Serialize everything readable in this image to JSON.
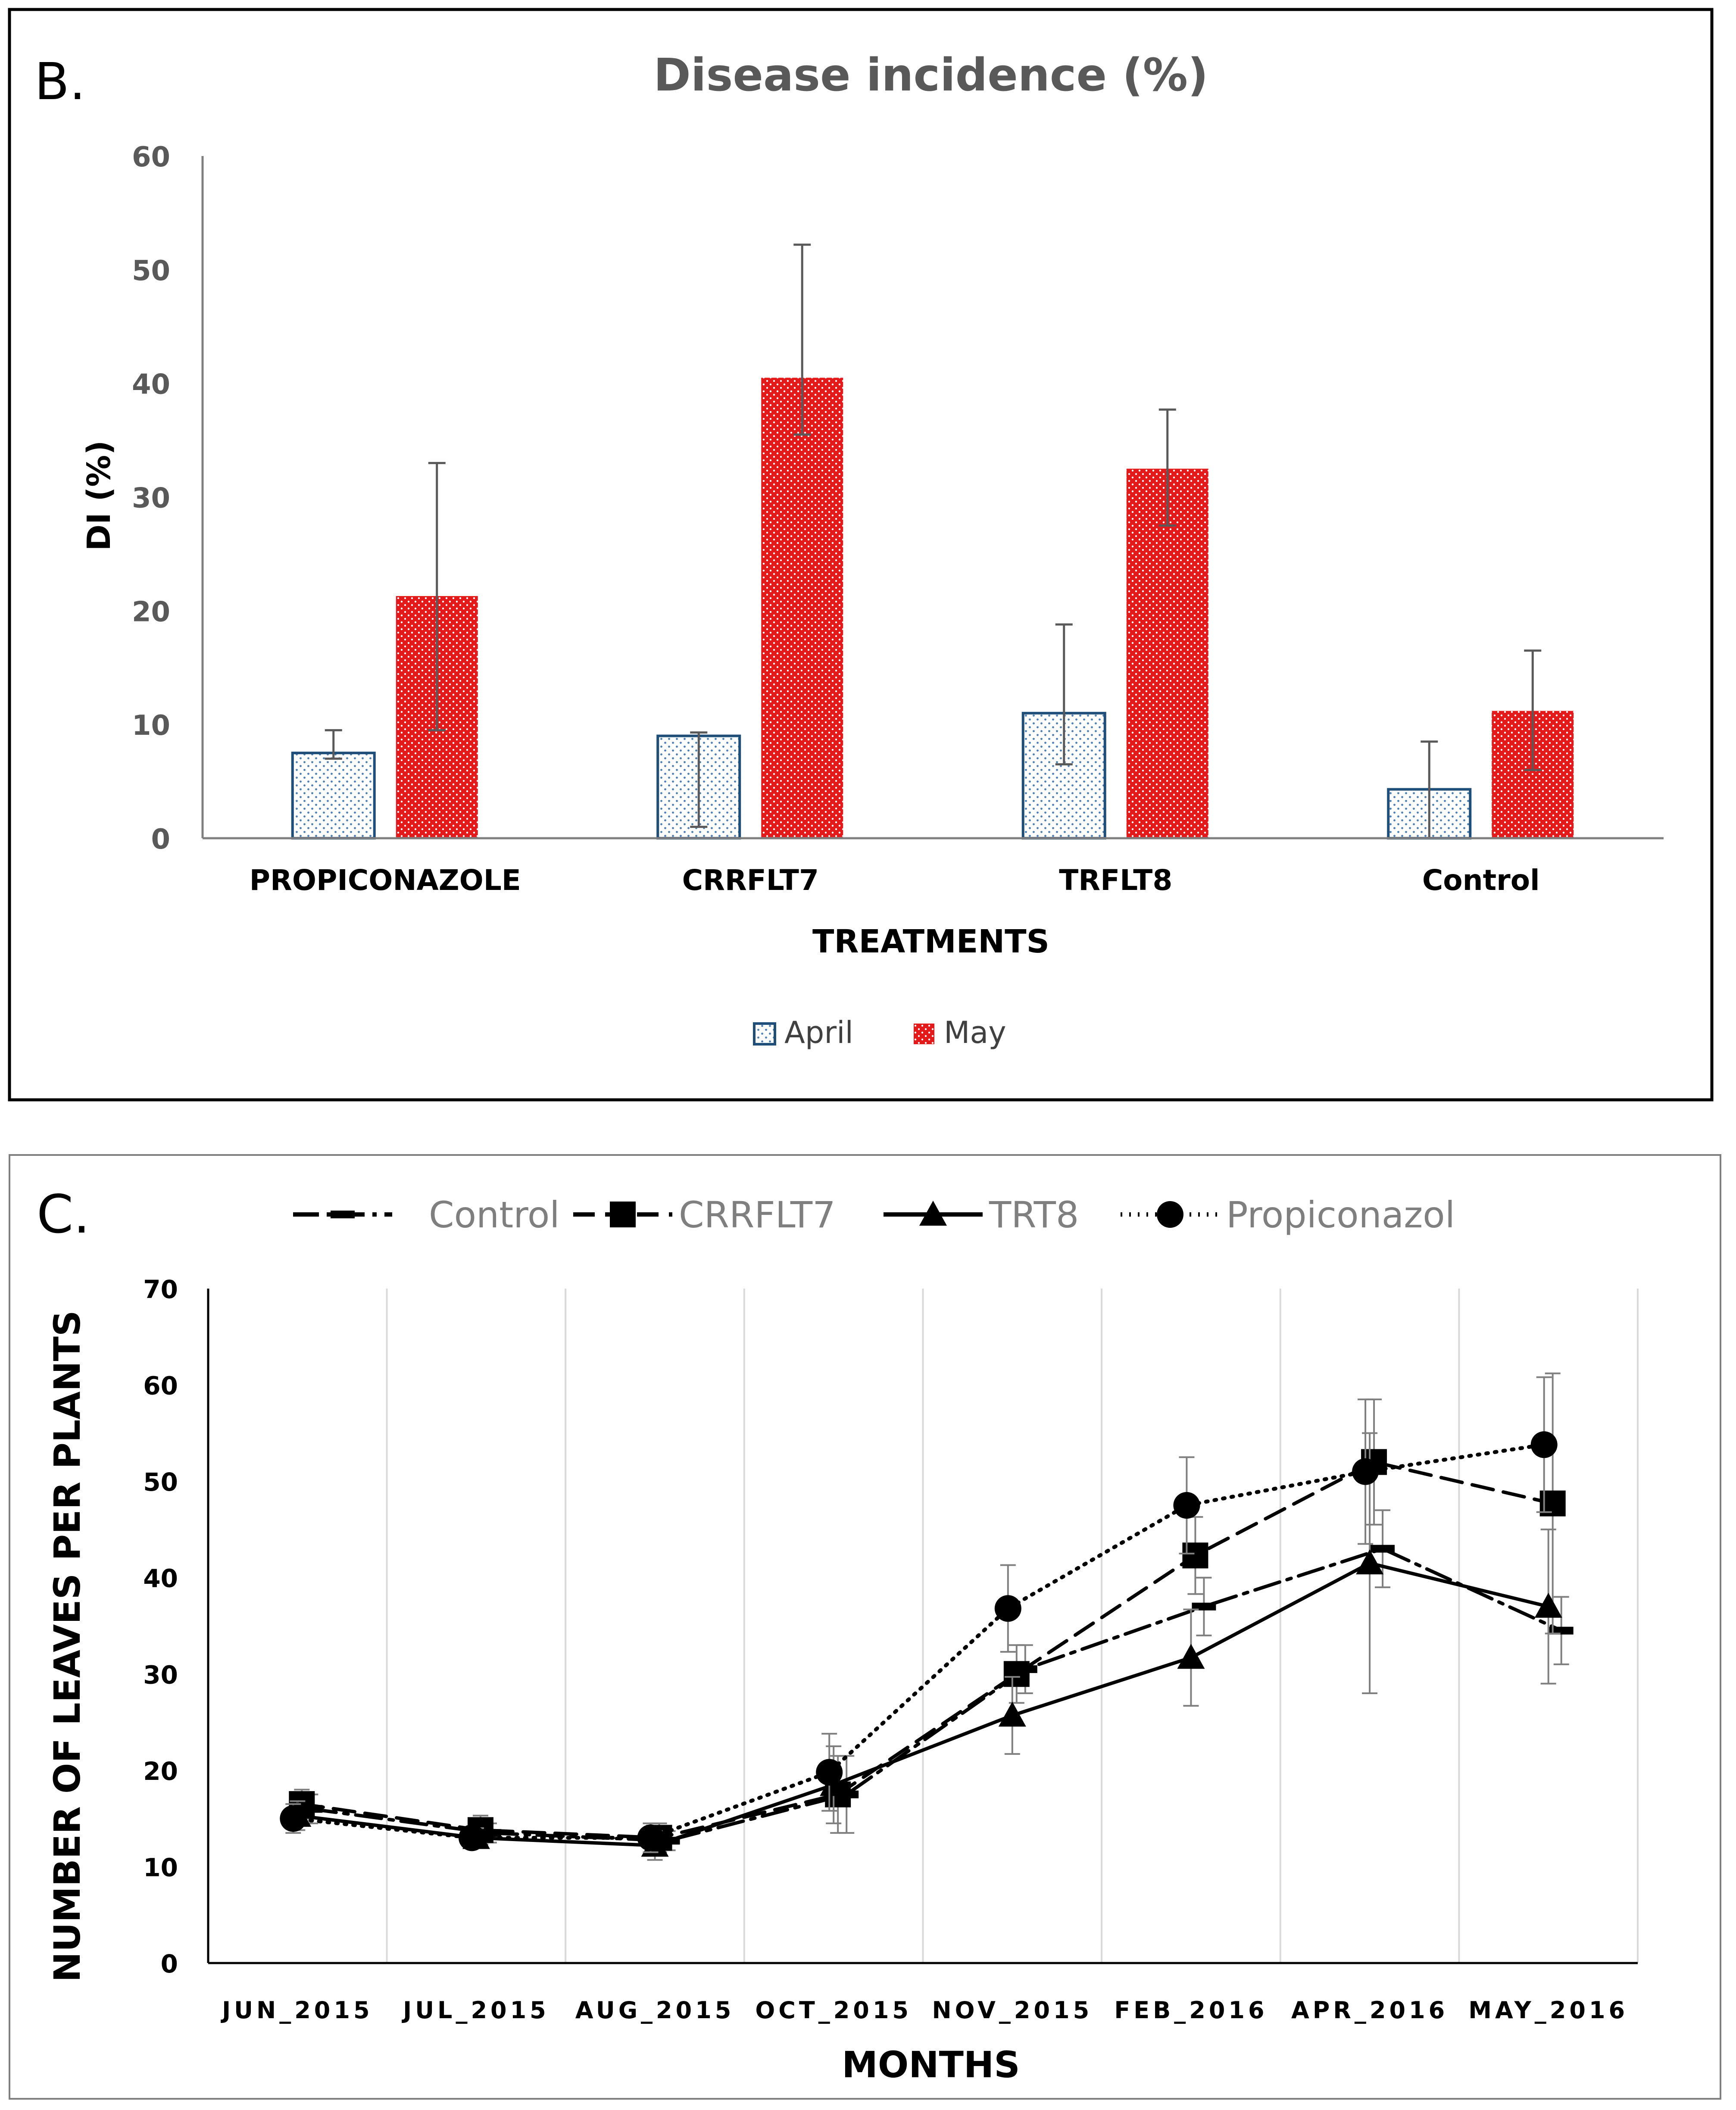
{
  "chart_data": [
    {
      "panel_label": "B.",
      "type": "bar",
      "title": "Disease incidence (%)",
      "xlabel": "TREATMENTS",
      "ylabel": "DI (%)",
      "ylim": [
        0,
        60
      ],
      "yticks": [
        0,
        10,
        20,
        30,
        40,
        50,
        60
      ],
      "categories": [
        "PROPICONAZOLE",
        "CRRFLT7",
        "TRFLT8",
        "Control"
      ],
      "series": [
        {
          "name": "April",
          "color": "#1f4e79",
          "fill": "dotted-white",
          "values": [
            7.5,
            9.0,
            11.0,
            4.3
          ],
          "err_low": [
            7.0,
            1.0,
            6.5,
            0.0
          ],
          "err_high": [
            9.5,
            9.3,
            18.8,
            8.5
          ]
        },
        {
          "name": "May",
          "color": "#e31a1c",
          "fill": "dotted-red",
          "values": [
            21.3,
            40.5,
            32.5,
            11.2
          ],
          "err_low": [
            9.5,
            35.5,
            27.5,
            6.0
          ],
          "err_high": [
            33.0,
            52.2,
            37.7,
            16.5
          ]
        }
      ],
      "legend": "bottom",
      "grid": false
    },
    {
      "panel_label": "C.",
      "type": "line",
      "xlabel": "MONTHS",
      "ylabel": "NUMBER OF LEAVES PER PLANTS",
      "ylim": [
        0,
        70
      ],
      "yticks": [
        0,
        10,
        20,
        30,
        40,
        50,
        60,
        70
      ],
      "categories": [
        "JUN_2015",
        "JUL_2015",
        "AUG_2015",
        "OCT_2015",
        "NOV_2015",
        "FEB_2016",
        "APR_2016",
        "MAY_2016"
      ],
      "series": [
        {
          "name": "Control",
          "style": "dash-dot",
          "marker": "dash",
          "values": [
            16.0,
            13.5,
            12.7,
            17.5,
            30.5,
            37.0,
            43.0,
            34.5
          ],
          "err": [
            1.5,
            1.0,
            1.0,
            4.0,
            2.5,
            3.0,
            4.0,
            3.5
          ]
        },
        {
          "name": "CRRFLT7",
          "style": "dashed",
          "marker": "square",
          "values": [
            16.5,
            13.8,
            13.0,
            17.5,
            30.0,
            42.3,
            52.0,
            47.7
          ],
          "err": [
            1.5,
            1.5,
            1.5,
            4.0,
            3.0,
            4.0,
            6.5,
            13.5
          ]
        },
        {
          "name": "TRT8",
          "style": "solid",
          "marker": "triangle",
          "values": [
            15.3,
            13.0,
            12.2,
            18.5,
            25.7,
            31.7,
            41.5,
            37.0
          ],
          "err": [
            1.5,
            1.0,
            1.5,
            4.0,
            4.0,
            5.0,
            13.5,
            8.0
          ]
        },
        {
          "name": "Propiconazol",
          "style": "dotted",
          "marker": "circle",
          "values": [
            15.0,
            13.0,
            13.0,
            19.8,
            36.8,
            47.5,
            51.0,
            53.8
          ],
          "err": [
            1.5,
            1.0,
            1.5,
            4.0,
            4.5,
            5.0,
            7.5,
            7.0
          ]
        }
      ],
      "legend": "top",
      "grid": "vertical"
    }
  ]
}
